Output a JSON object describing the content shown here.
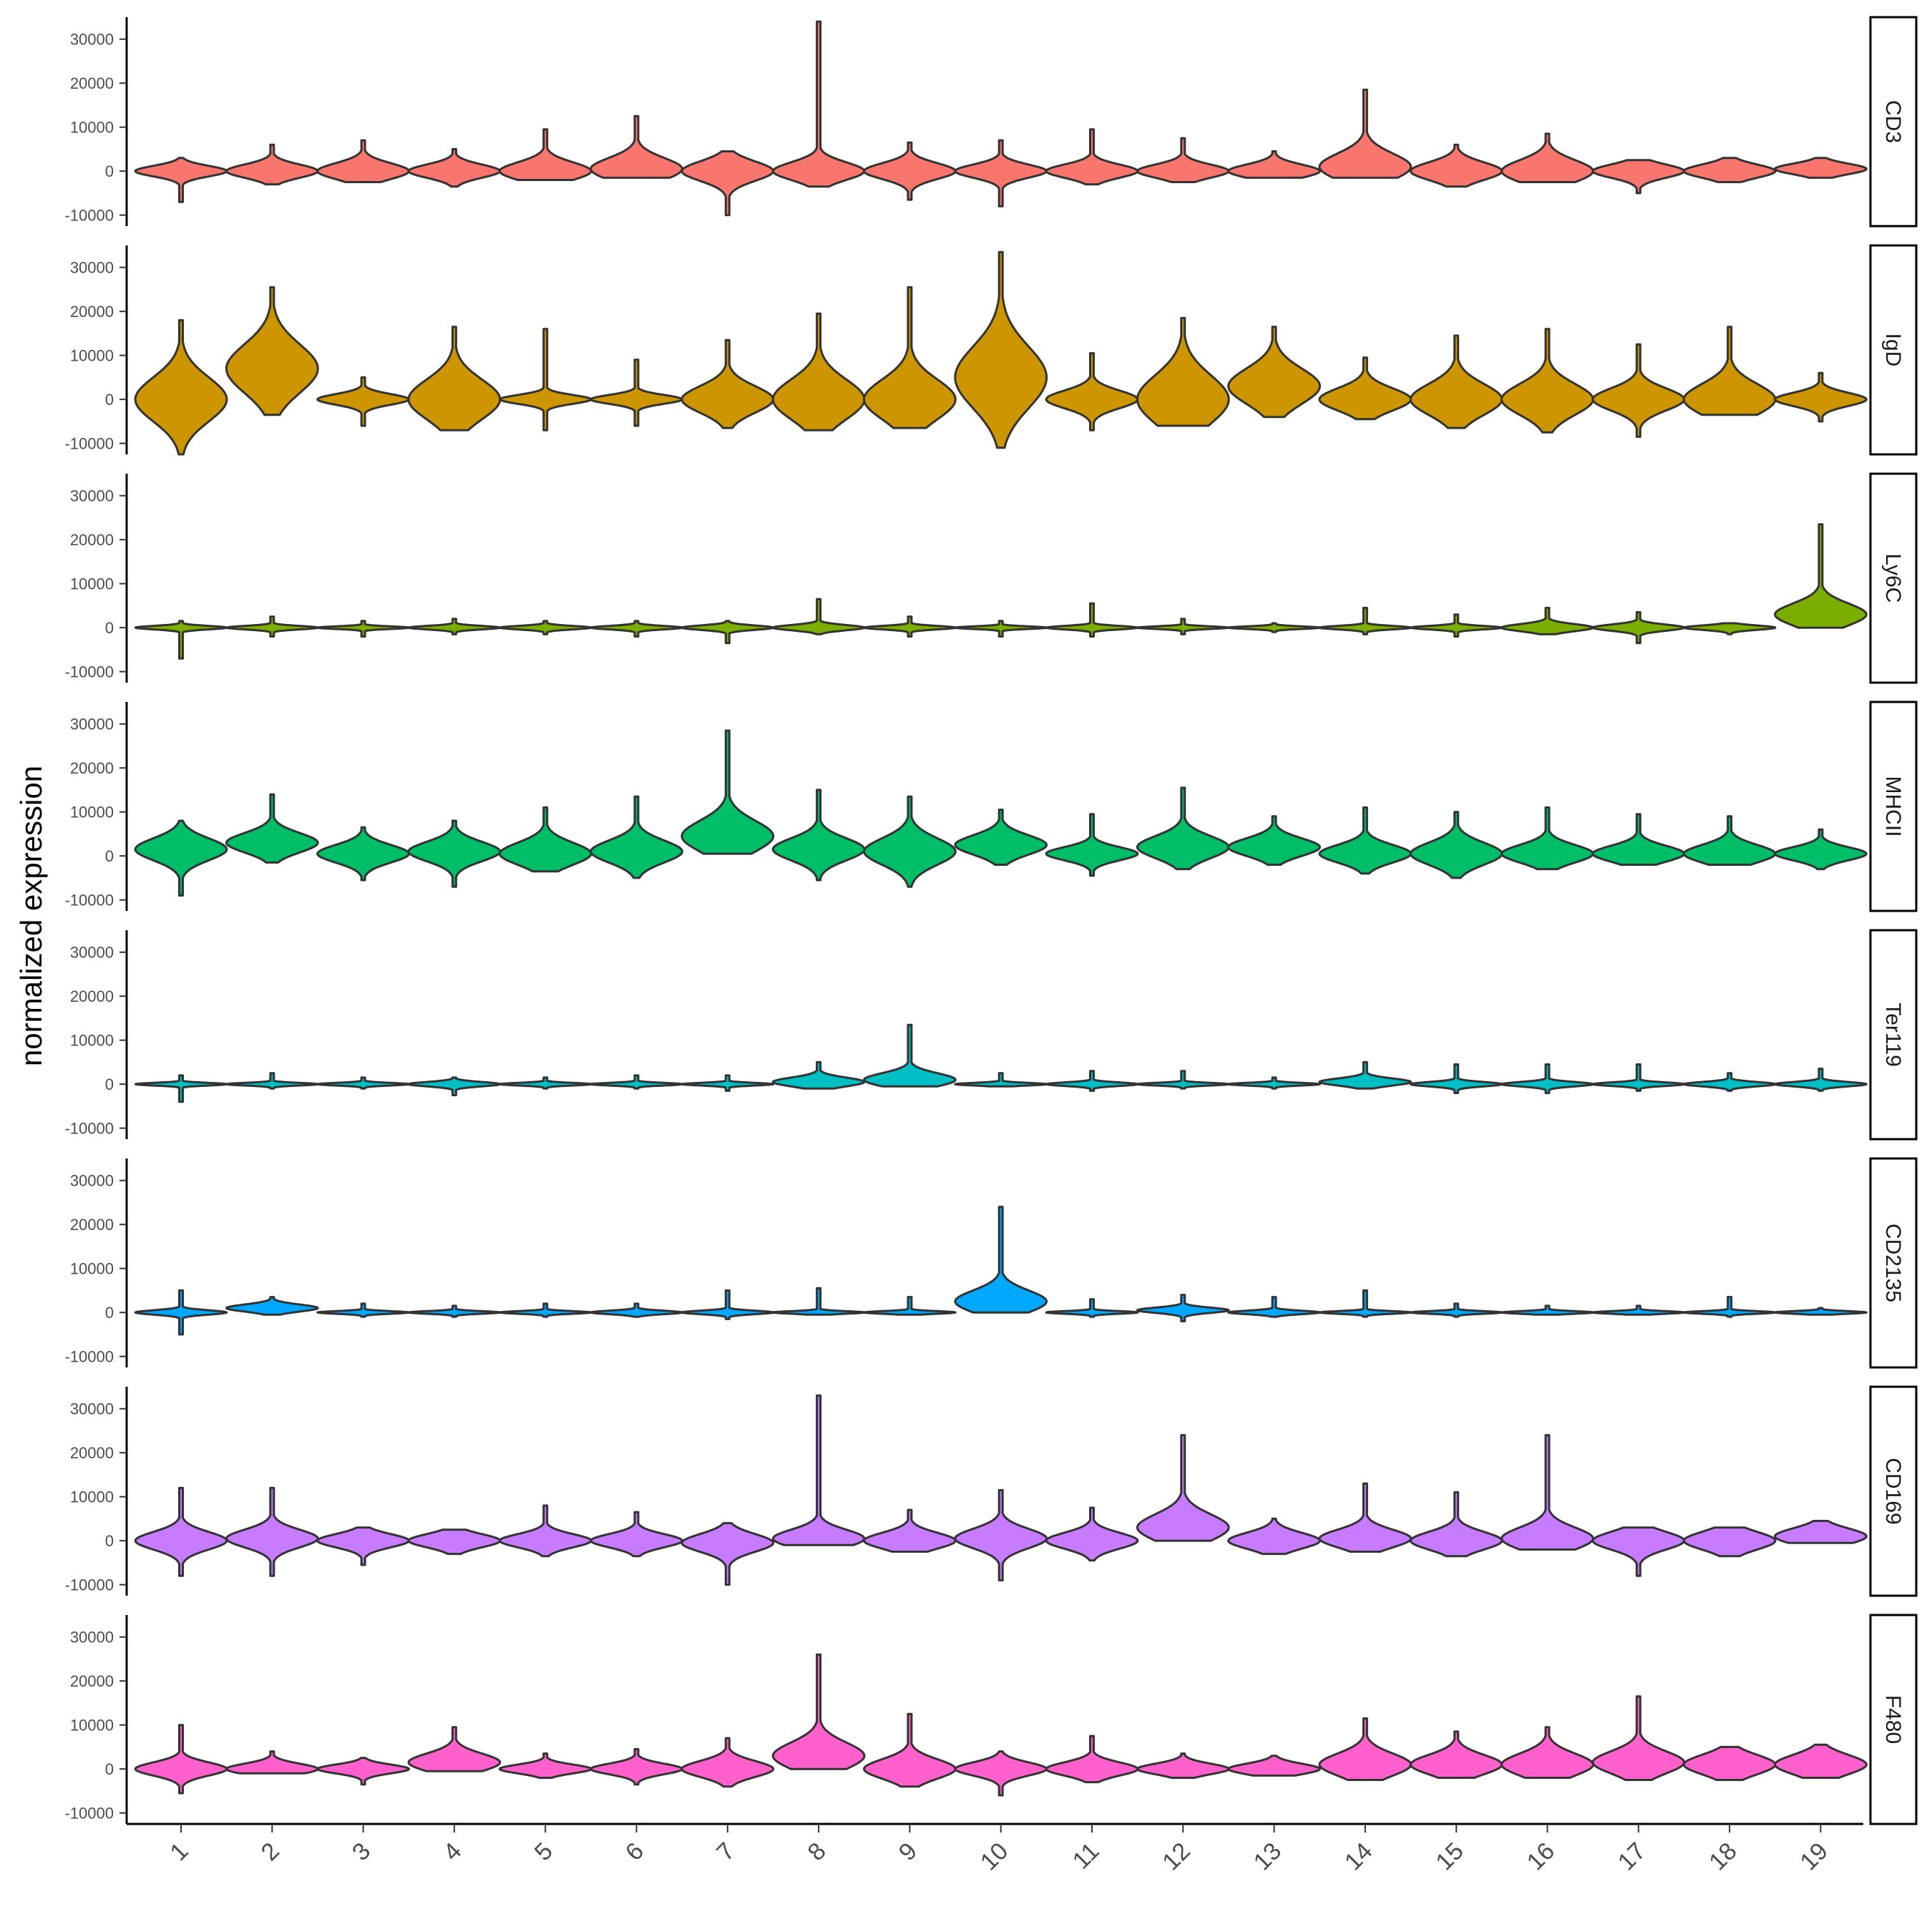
{
  "chart_data": {
    "type": "violin",
    "ylabel": "normalized expression",
    "xlabel": "",
    "categories": [
      "1",
      "2",
      "3",
      "4",
      "5",
      "6",
      "7",
      "8",
      "9",
      "10",
      "11",
      "12",
      "13",
      "14",
      "15",
      "16",
      "17",
      "18",
      "19"
    ],
    "y_ticks": [
      -10000,
      0,
      10000,
      20000,
      30000
    ],
    "y_tick_labels": [
      "-10000",
      "0",
      "10000",
      "20000",
      "30000"
    ],
    "ylim": [
      -12500,
      35000
    ],
    "grid": false,
    "legend": "none",
    "facets": [
      {
        "name": "CD3",
        "color": "#F8766D",
        "median": [
          0,
          0,
          0,
          0,
          0,
          500,
          0,
          0,
          0,
          0,
          0,
          0,
          0,
          1000,
          0,
          0,
          0,
          0,
          500
        ],
        "spread": [
          1200,
          1500,
          1800,
          1500,
          2000,
          2500,
          2200,
          2000,
          1800,
          1500,
          1500,
          1500,
          1500,
          3000,
          2000,
          2500,
          1500,
          1500,
          1200
        ],
        "max": [
          3000,
          6000,
          7000,
          5000,
          9500,
          12500,
          4500,
          34000,
          6500,
          7000,
          9500,
          7500,
          4500,
          18500,
          6000,
          8500,
          2500,
          3000,
          3000
        ],
        "min": [
          -7000,
          -3000,
          -2500,
          -3500,
          -2000,
          -1500,
          -10000,
          -3500,
          -6500,
          -8000,
          -3000,
          -2500,
          -1500,
          -1500,
          -3500,
          -2500,
          -5000,
          -2500,
          -1500
        ]
      },
      {
        "name": "IgD",
        "color": "#CD9600",
        "median": [
          0,
          7000,
          0,
          0,
          0,
          0,
          0,
          0,
          0,
          5000,
          0,
          0,
          3000,
          0,
          0,
          0,
          0,
          0,
          0
        ],
        "spread": [
          5000,
          5500,
          1200,
          4500,
          1000,
          1000,
          3000,
          4500,
          4500,
          7000,
          2000,
          5500,
          4000,
          2500,
          3500,
          3500,
          2500,
          3500,
          1500
        ],
        "max": [
          18000,
          25500,
          5000,
          16500,
          16000,
          9000,
          13500,
          19500,
          25500,
          33500,
          10500,
          18500,
          16500,
          9500,
          14500,
          16000,
          12500,
          16500,
          6000
        ],
        "min": [
          -12500,
          -3500,
          -6000,
          -7000,
          -7000,
          -6000,
          -6500,
          -7000,
          -6500,
          -11000,
          -7000,
          -6000,
          -4000,
          -4500,
          -6500,
          -7500,
          -8500,
          -3500,
          -5000
        ]
      },
      {
        "name": "Ly6C",
        "color": "#7CAE00",
        "median": [
          0,
          0,
          0,
          0,
          0,
          0,
          0,
          0,
          0,
          0,
          0,
          0,
          0,
          0,
          0,
          0,
          0,
          0,
          3000
        ],
        "spread": [
          400,
          400,
          300,
          400,
          400,
          400,
          500,
          600,
          400,
          300,
          400,
          300,
          300,
          400,
          400,
          800,
          700,
          500,
          2500
        ],
        "max": [
          1500,
          2500,
          1500,
          2000,
          1500,
          1500,
          1500,
          6500,
          2500,
          1500,
          5500,
          2000,
          1000,
          4500,
          3000,
          4500,
          3500,
          1000,
          23500
        ],
        "min": [
          -7000,
          -2000,
          -2000,
          -1500,
          -1500,
          -2000,
          -3500,
          -1500,
          -2000,
          -2000,
          -2000,
          -1500,
          -1000,
          -1500,
          -2000,
          -1500,
          -3500,
          -1500,
          0
        ]
      },
      {
        "name": "MHCII",
        "color": "#00BE67",
        "median": [
          1500,
          3000,
          500,
          1000,
          500,
          1000,
          4500,
          1500,
          1000,
          2500,
          500,
          2000,
          2000,
          500,
          500,
          500,
          500,
          500,
          500
        ],
        "spread": [
          2500,
          2200,
          2000,
          2200,
          2500,
          2500,
          3500,
          2500,
          3000,
          2200,
          1500,
          2500,
          2000,
          2000,
          2500,
          2000,
          1800,
          2000,
          1500
        ],
        "max": [
          8000,
          14000,
          6500,
          8000,
          11000,
          13500,
          28500,
          15000,
          13500,
          10500,
          9500,
          15500,
          9000,
          11000,
          10000,
          11000,
          9500,
          9000,
          6000
        ],
        "min": [
          -9000,
          -1500,
          -5500,
          -7000,
          -3500,
          -5000,
          500,
          -5500,
          -7000,
          -2000,
          -4500,
          -3000,
          -2000,
          -4000,
          -5000,
          -3000,
          -2000,
          -2000,
          -3000
        ]
      },
      {
        "name": "Ter119",
        "color": "#00BFC4",
        "median": [
          0,
          0,
          0,
          0,
          0,
          0,
          0,
          500,
          1000,
          0,
          0,
          0,
          0,
          500,
          0,
          0,
          0,
          0,
          0
        ],
        "spread": [
          300,
          300,
          300,
          500,
          300,
          300,
          300,
          1000,
          1500,
          300,
          400,
          300,
          300,
          800,
          500,
          500,
          400,
          500,
          500
        ],
        "max": [
          2000,
          2500,
          1500,
          1500,
          1500,
          2000,
          2000,
          5000,
          13500,
          2500,
          3000,
          3000,
          1500,
          5000,
          4500,
          4500,
          4500,
          2500,
          3500
        ],
        "min": [
          -4000,
          -1000,
          -1000,
          -2500,
          -1000,
          -1000,
          -1500,
          -1000,
          -500,
          -500,
          -1500,
          -1000,
          -1000,
          -1000,
          -2000,
          -2000,
          -1500,
          -1500,
          -1500
        ]
      },
      {
        "name": "CD2135",
        "color": "#00A9FF",
        "median": [
          0,
          1000,
          0,
          0,
          0,
          0,
          0,
          0,
          0,
          2500,
          0,
          500,
          0,
          0,
          0,
          0,
          0,
          0,
          0
        ],
        "spread": [
          500,
          800,
          300,
          300,
          300,
          400,
          400,
          300,
          300,
          2500,
          300,
          600,
          400,
          300,
          300,
          300,
          300,
          300,
          300
        ],
        "max": [
          5000,
          3500,
          2000,
          1500,
          2000,
          2000,
          5000,
          5500,
          3500,
          24000,
          3000,
          4000,
          3500,
          5000,
          2000,
          1500,
          1500,
          3500,
          1000
        ],
        "min": [
          -5000,
          -500,
          -1000,
          -1000,
          -1000,
          -1000,
          -1500,
          -500,
          -500,
          0,
          -1000,
          -2000,
          -1000,
          -1000,
          -1000,
          -500,
          -500,
          -1000,
          -500
        ]
      },
      {
        "name": "CD169",
        "color": "#C77CFF",
        "median": [
          0,
          500,
          0,
          0,
          0,
          0,
          -500,
          500,
          0,
          500,
          0,
          3000,
          0,
          500,
          0,
          500,
          0,
          0,
          1000
        ],
        "spread": [
          2000,
          2000,
          1500,
          1500,
          1500,
          1500,
          2000,
          2000,
          1800,
          2200,
          1800,
          3000,
          1800,
          2000,
          2000,
          2500,
          2000,
          2000,
          1800
        ],
        "max": [
          12000,
          12000,
          3000,
          2500,
          8000,
          6500,
          4000,
          33000,
          7000,
          11500,
          7500,
          24000,
          5000,
          13000,
          11000,
          24000,
          3000,
          3000,
          4500
        ],
        "min": [
          -8000,
          -8000,
          -5500,
          -3000,
          -3500,
          -3500,
          -10000,
          -1000,
          -2500,
          -9000,
          -4500,
          0,
          -3000,
          -2500,
          -3500,
          -2000,
          -8000,
          -3500,
          -500
        ]
      },
      {
        "name": "F480",
        "color": "#FF61CC",
        "median": [
          0,
          0,
          0,
          1500,
          0,
          0,
          0,
          3000,
          0,
          0,
          0,
          0,
          0,
          1000,
          1000,
          1000,
          1500,
          1000,
          1000
        ],
        "spread": [
          1500,
          1200,
          1000,
          2000,
          1000,
          1200,
          1800,
          3000,
          2200,
          1500,
          1500,
          1200,
          1200,
          2500,
          2200,
          2500,
          2500,
          2200,
          2200
        ],
        "max": [
          10000,
          4000,
          2500,
          9500,
          3500,
          4500,
          7000,
          26000,
          12500,
          4000,
          7500,
          3500,
          3000,
          11500,
          8500,
          9500,
          16500,
          5000,
          5500
        ],
        "min": [
          -5500,
          -1000,
          -3500,
          -500,
          -2000,
          -3500,
          -4000,
          0,
          -4000,
          -6000,
          -3000,
          -2000,
          -1500,
          -2500,
          -2000,
          -2000,
          -2500,
          -2500,
          -2000
        ]
      }
    ]
  }
}
